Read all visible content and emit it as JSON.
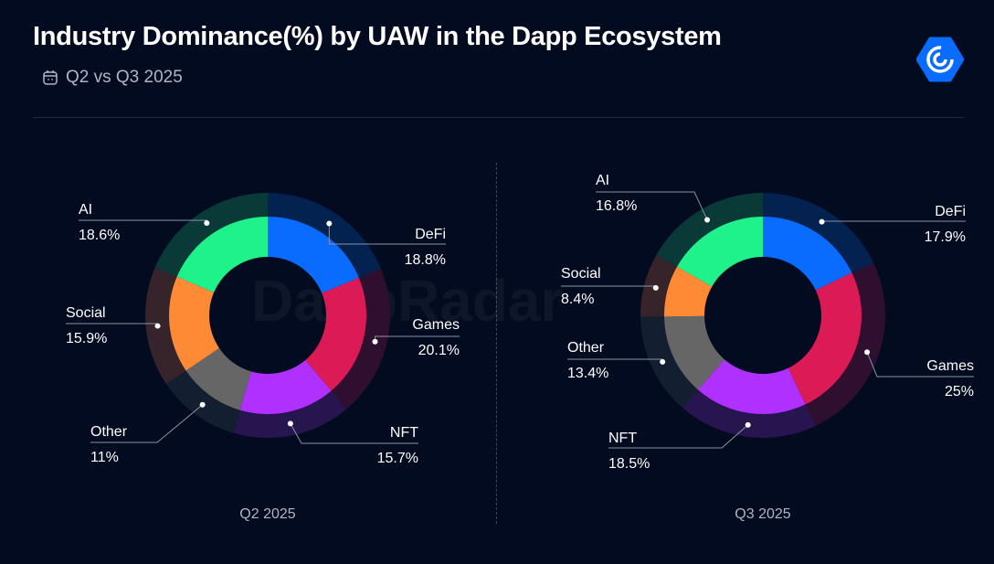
{
  "header": {
    "title": "Industry Dominance(%) by UAW in the Dapp Ecosystem",
    "subtitle": "Q2 vs Q3 2025",
    "calendar_icon": "calendar-icon",
    "logo": "dappradar-logo"
  },
  "watermark": "DappRadar",
  "colors": {
    "DeFi": "#0a6cff",
    "Games": "#dc1a55",
    "NFT": "#b030ff",
    "Other": "#666666",
    "Social": "#ff8a35",
    "AI": "#1ff28a"
  },
  "outer_colors": {
    "DeFi": "#03224f",
    "Games": "#2f0f30",
    "NFT": "#26154f",
    "Other": "#141e31",
    "Social": "#37232a",
    "AI": "#0a3a37"
  },
  "chart_data": [
    {
      "type": "pie",
      "variant": "donut",
      "caption": "Q2 2025",
      "categories": [
        "DeFi",
        "Games",
        "NFT",
        "Other",
        "Social",
        "AI"
      ],
      "values": [
        18.8,
        20.1,
        15.7,
        11,
        15.9,
        18.6
      ],
      "value_labels": [
        "18.8%",
        "20.1%",
        "15.7%",
        "11%",
        "15.9%",
        "18.6%"
      ]
    },
    {
      "type": "pie",
      "variant": "donut",
      "caption": "Q3 2025",
      "categories": [
        "DeFi",
        "Games",
        "NFT",
        "Other",
        "Social",
        "AI"
      ],
      "values": [
        17.9,
        25,
        18.5,
        13.4,
        8.4,
        16.8
      ],
      "value_labels": [
        "17.9%",
        "25%",
        "18.5%",
        "13.4%",
        "8.4%",
        "16.8%"
      ]
    }
  ]
}
